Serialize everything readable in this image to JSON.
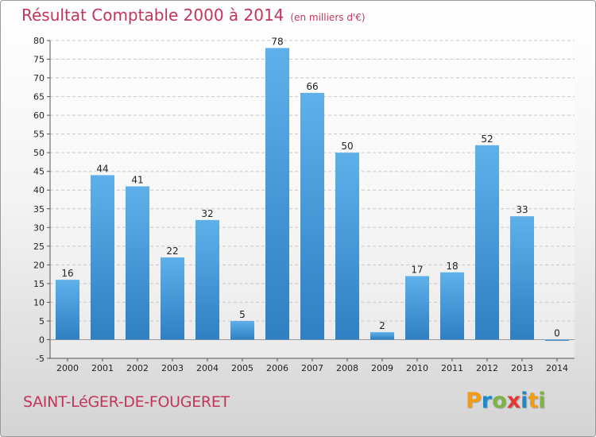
{
  "chart_data": {
    "type": "bar",
    "title": "Résultat Comptable 2000 à 2014",
    "subtitle": "(en milliers d'€)",
    "categories": [
      "2000",
      "2001",
      "2002",
      "2003",
      "2004",
      "2005",
      "2006",
      "2007",
      "2008",
      "2009",
      "2010",
      "2011",
      "2012",
      "2013",
      "2014"
    ],
    "values": [
      16,
      44,
      41,
      22,
      32,
      5,
      78,
      66,
      50,
      2,
      17,
      18,
      52,
      33,
      0
    ],
    "value_labels": [
      "16",
      "44",
      "41",
      "22",
      "32",
      "5",
      "78",
      "66",
      "50",
      "2",
      "17",
      "18",
      "52",
      "33",
      "0"
    ],
    "ylim": [
      -5,
      80
    ],
    "yticks": [
      -5,
      0,
      5,
      10,
      15,
      20,
      25,
      30,
      35,
      40,
      45,
      50,
      55,
      60,
      65,
      70,
      75,
      80
    ],
    "ytick_labels": [
      "-5",
      "0",
      "5",
      "10",
      "15",
      "20",
      "25",
      "30",
      "35",
      "40",
      "45",
      "50",
      "55",
      "60",
      "65",
      "70",
      "75",
      "80"
    ],
    "xlabel": "",
    "ylabel": "",
    "grid": true,
    "bar_color": "#4a9fe0"
  },
  "footer": {
    "commune": "SAINT-LéGER-DE-FOUGERET"
  },
  "logo": {
    "letters": [
      "P",
      "r",
      "o",
      "x",
      "i",
      "t",
      "i"
    ],
    "colors": [
      "#f39c12",
      "#1e88c8",
      "#7cb342",
      "#e53935",
      "#1e88c8",
      "#f39c12",
      "#7cb342"
    ]
  }
}
